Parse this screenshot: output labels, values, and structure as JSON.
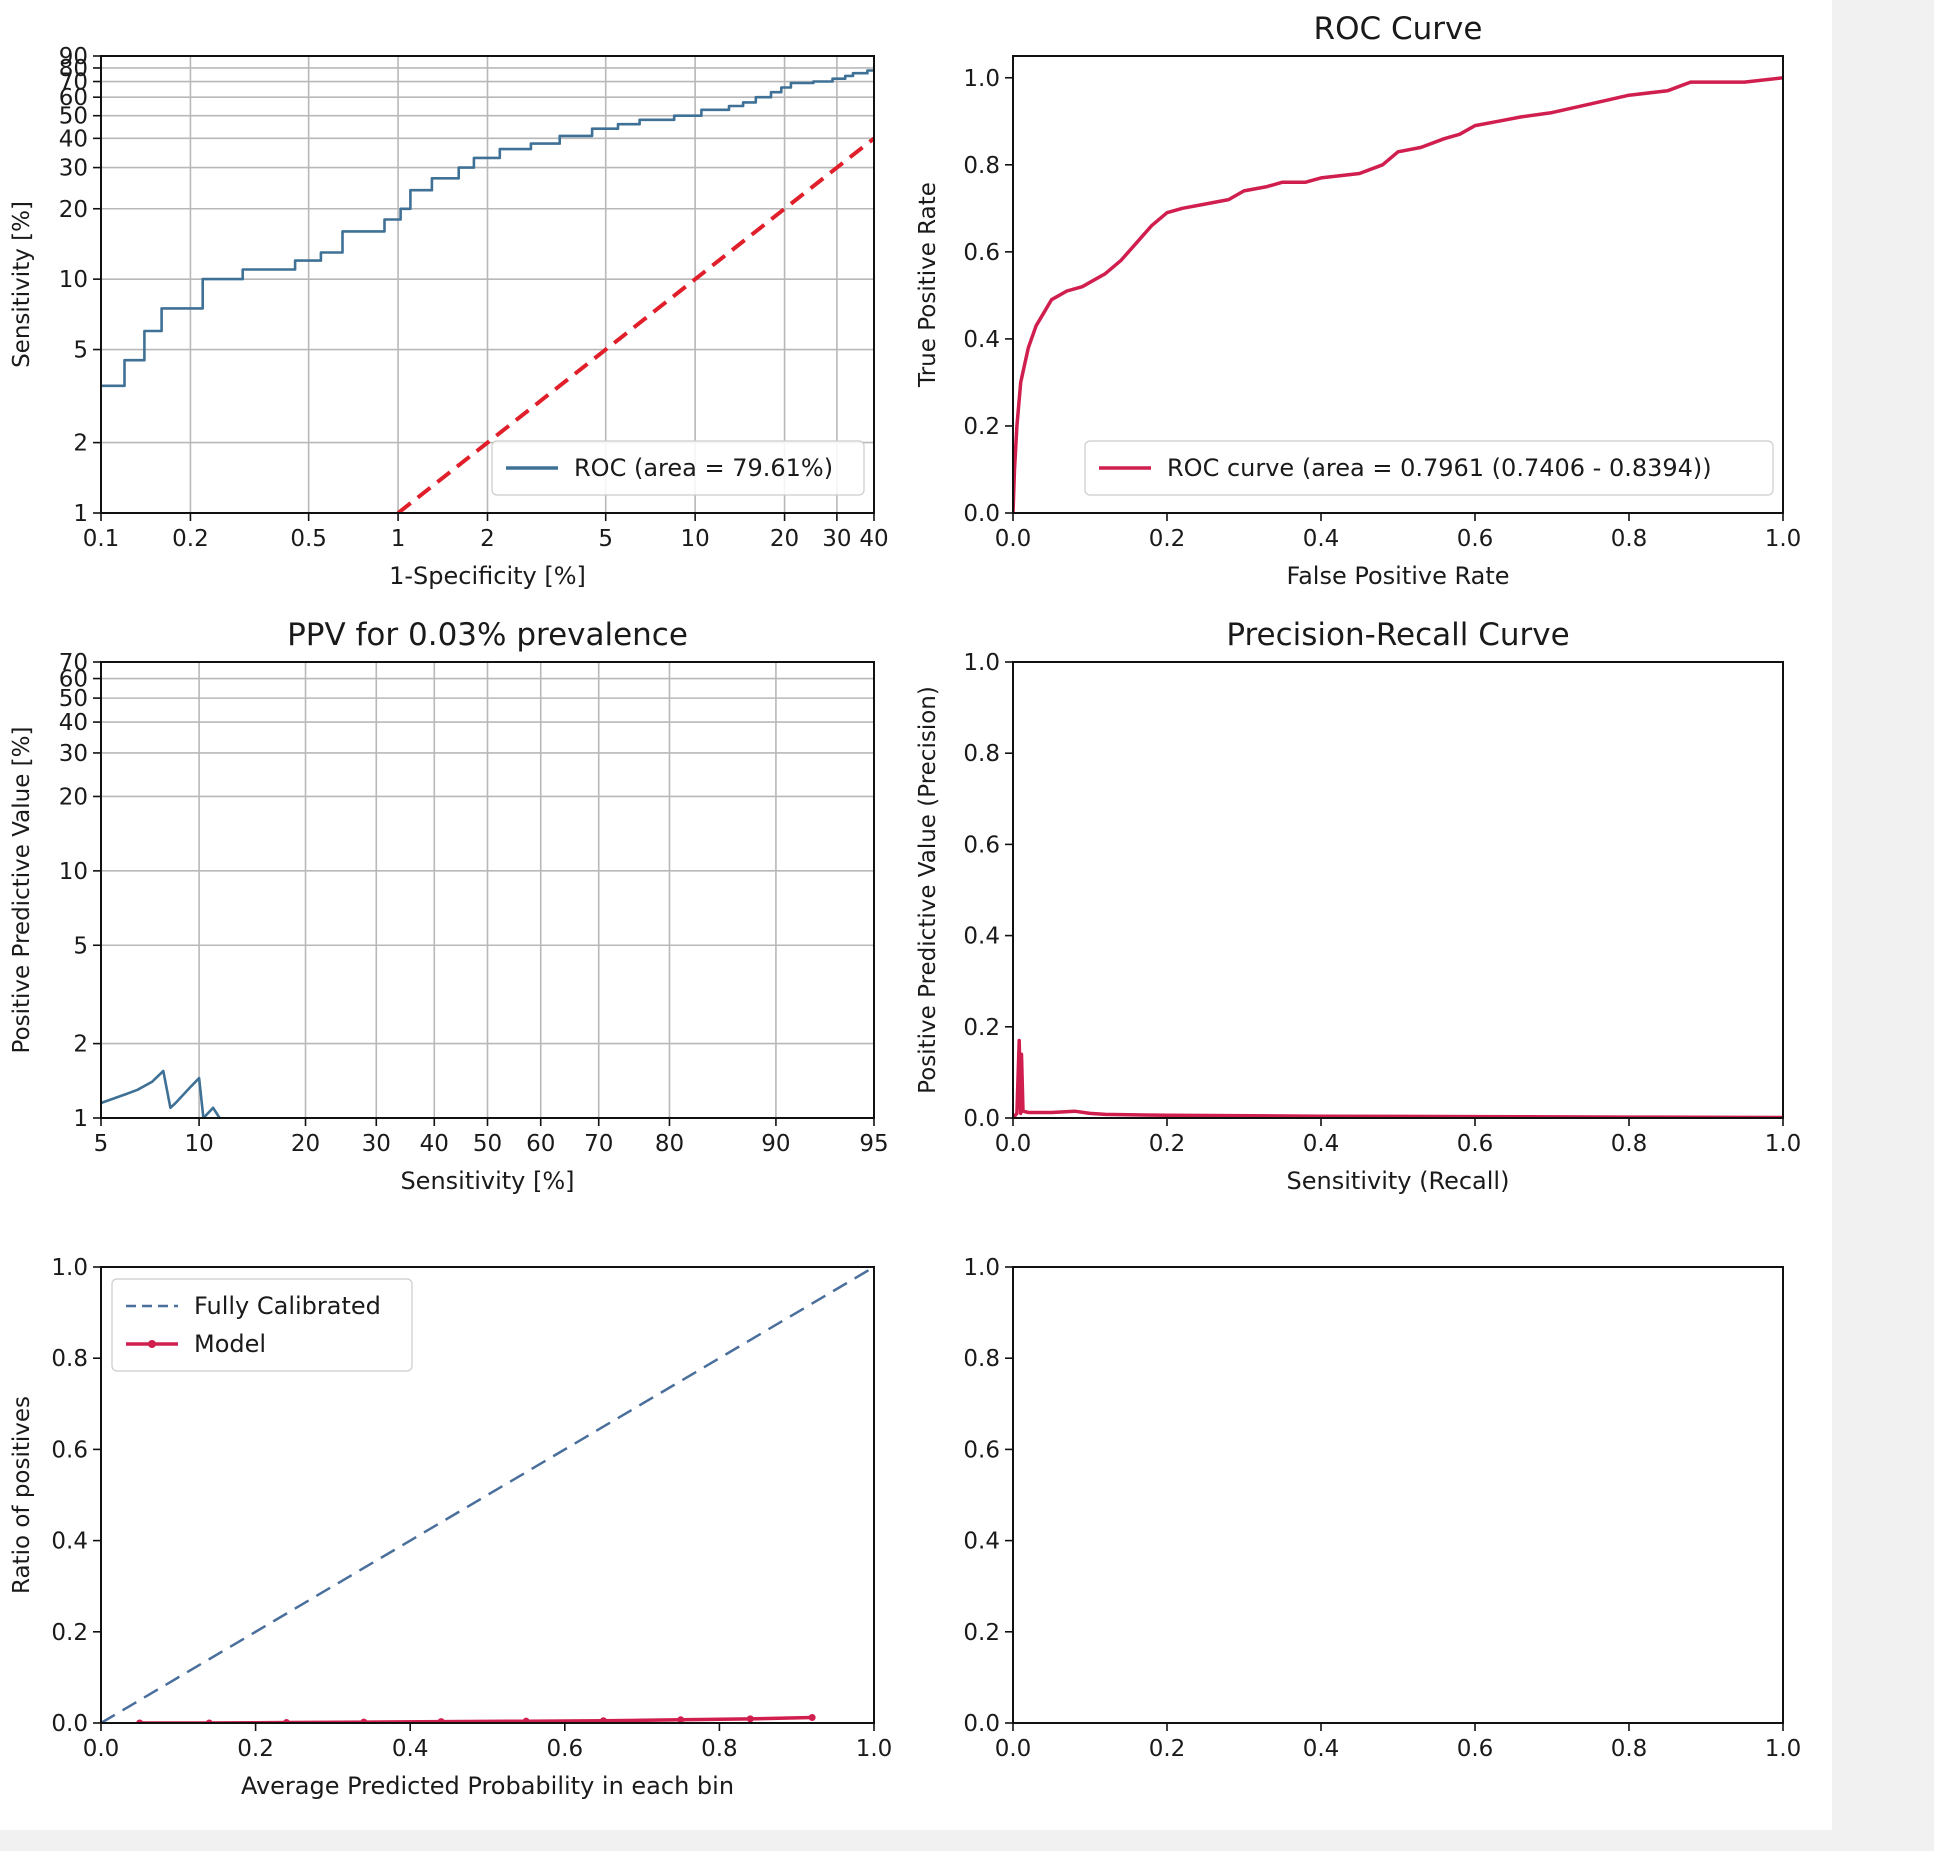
{
  "colors": {
    "steel_blue": "#3f7196",
    "crimson": "#d01e4f",
    "red_dashed": "#e01f2b",
    "grid": "#b8b8b8",
    "calib_blue": "#4a6f9c",
    "background_strip": "#f1f1f1"
  },
  "chart_data": [
    {
      "id": "sens-vs-fpr-log",
      "type": "line",
      "title": "",
      "xlabel": "1-Specificity [%]",
      "ylabel": "Sensitivity [%]",
      "xscale": "log",
      "yscale": "log",
      "xlim": [
        0.1,
        40
      ],
      "ylim": [
        1,
        90
      ],
      "xticks": [
        0.1,
        0.2,
        0.5,
        1,
        2,
        5,
        10,
        20,
        30,
        40
      ],
      "xtick_labels": [
        "0.1",
        "0.2",
        "0.5",
        "1",
        "2",
        "5",
        "10",
        "20",
        "30",
        "40"
      ],
      "yticks": [
        1,
        2,
        5,
        10,
        20,
        30,
        40,
        50,
        60,
        70,
        80,
        90
      ],
      "ytick_labels": [
        "1",
        "2",
        "5",
        "10",
        "20",
        "30",
        "40",
        "50",
        "60",
        "70",
        "80",
        "90"
      ],
      "grid": true,
      "legend": {
        "position": "lower-right",
        "entries": [
          {
            "label": "ROC (area = 79.61%)",
            "style": "line",
            "color": "#3f7196"
          }
        ]
      },
      "series": [
        {
          "name": "ROC (area = 79.61%)",
          "style": "step",
          "color": "#3f7196",
          "x": [
            0.1,
            0.12,
            0.12,
            0.14,
            0.14,
            0.16,
            0.16,
            0.22,
            0.22,
            0.3,
            0.3,
            0.45,
            0.45,
            0.55,
            0.55,
            0.65,
            0.65,
            0.9,
            0.9,
            1.02,
            1.02,
            1.1,
            1.1,
            1.3,
            1.3,
            1.6,
            1.6,
            1.8,
            1.8,
            2.2,
            2.2,
            2.8,
            2.8,
            3.5,
            3.5,
            4.5,
            4.5,
            5.5,
            5.5,
            6.5,
            6.5,
            8.5,
            8.5,
            10.5,
            10.5,
            13,
            13,
            14.5,
            14.5,
            16,
            16,
            18,
            18,
            19.5,
            19.5,
            21,
            21,
            25,
            25,
            29,
            29,
            32,
            32,
            34,
            34,
            38,
            38,
            40
          ],
          "y": [
            3.5,
            3.5,
            4.5,
            4.5,
            6,
            6,
            7.5,
            7.5,
            10,
            10,
            11,
            11,
            12,
            12,
            13,
            13,
            16,
            16,
            18,
            18,
            20,
            20,
            24,
            24,
            27,
            27,
            30,
            30,
            33,
            33,
            36,
            36,
            38,
            38,
            41,
            41,
            44,
            44,
            46,
            46,
            48,
            48,
            50,
            50,
            53,
            53,
            55,
            55,
            57,
            57,
            60,
            60,
            63,
            63,
            66,
            66,
            69,
            69,
            70,
            70,
            72,
            72,
            74,
            74,
            76,
            76,
            78,
            78
          ]
        },
        {
          "name": "",
          "style": "dashed",
          "color": "#e01f2b",
          "x": [
            1,
            40
          ],
          "y": [
            1,
            40
          ]
        }
      ]
    },
    {
      "id": "roc-curve",
      "type": "line",
      "title": "ROC Curve",
      "xlabel": "False Positive Rate",
      "ylabel": "True Positive Rate",
      "xlim": [
        0,
        1
      ],
      "ylim": [
        0,
        1.05
      ],
      "xticks": [
        0,
        0.2,
        0.4,
        0.6,
        0.8,
        1.0
      ],
      "xtick_labels": [
        "0.0",
        "0.2",
        "0.4",
        "0.6",
        "0.8",
        "1.0"
      ],
      "yticks": [
        0,
        0.2,
        0.4,
        0.6,
        0.8,
        1.0
      ],
      "ytick_labels": [
        "0.0",
        "0.2",
        "0.4",
        "0.6",
        "0.8",
        "1.0"
      ],
      "grid": false,
      "legend": {
        "position": "lower-right",
        "entries": [
          {
            "label": "ROC curve (area = 0.7961 (0.7406 - 0.8394))",
            "style": "line",
            "color": "#d01e4f"
          }
        ]
      },
      "series": [
        {
          "name": "ROC curve (area = 0.7961 (0.7406 - 0.8394))",
          "style": "line",
          "color": "#d01e4f",
          "x": [
            0,
            0.002,
            0.005,
            0.01,
            0.015,
            0.02,
            0.03,
            0.04,
            0.05,
            0.07,
            0.09,
            0.1,
            0.12,
            0.14,
            0.16,
            0.18,
            0.2,
            0.22,
            0.25,
            0.28,
            0.3,
            0.33,
            0.35,
            0.38,
            0.4,
            0.45,
            0.48,
            0.5,
            0.53,
            0.56,
            0.58,
            0.6,
            0.63,
            0.66,
            0.7,
            0.75,
            0.8,
            0.85,
            0.88,
            0.95,
            1.0
          ],
          "y": [
            0,
            0.1,
            0.2,
            0.3,
            0.34,
            0.38,
            0.43,
            0.46,
            0.49,
            0.51,
            0.52,
            0.53,
            0.55,
            0.58,
            0.62,
            0.66,
            0.69,
            0.7,
            0.71,
            0.72,
            0.74,
            0.75,
            0.76,
            0.76,
            0.77,
            0.78,
            0.8,
            0.83,
            0.84,
            0.86,
            0.87,
            0.89,
            0.9,
            0.91,
            0.92,
            0.94,
            0.96,
            0.97,
            0.99,
            0.99,
            1.0
          ]
        }
      ]
    },
    {
      "id": "ppv-prevalence",
      "type": "line",
      "title": "PPV for 0.03% prevalence",
      "xlabel": "Sensitivity [%]",
      "ylabel": "Positive Predictive Value [%]",
      "xscale": "logit",
      "yscale": "log",
      "xlim": [
        5,
        95
      ],
      "ylim": [
        1,
        70
      ],
      "xticks": [
        5,
        10,
        20,
        30,
        40,
        50,
        60,
        70,
        80,
        90,
        95
      ],
      "xtick_labels": [
        "5",
        "10",
        "20",
        "30",
        "40",
        "50",
        "60",
        "70",
        "80",
        "90",
        "95"
      ],
      "yticks": [
        1,
        2,
        5,
        10,
        20,
        30,
        40,
        50,
        60,
        70
      ],
      "ytick_labels": [
        "1",
        "2",
        "5",
        "10",
        "20",
        "30",
        "40",
        "50",
        "60",
        "70"
      ],
      "grid": true,
      "series": [
        {
          "name": "",
          "style": "line",
          "color": "#3f7196",
          "x": [
            5,
            6,
            6.5,
            7.2,
            7.8,
            8.2,
            8.5,
            9.5,
            10.0,
            10.3,
            11.0,
            11.5
          ],
          "y": [
            1.15,
            1.25,
            1.3,
            1.4,
            1.55,
            1.1,
            1.15,
            1.35,
            1.45,
            1.0,
            1.1,
            1.0
          ]
        }
      ]
    },
    {
      "id": "precision-recall",
      "type": "line",
      "title": "Precision-Recall Curve",
      "xlabel": "Sensitivity (Recall)",
      "ylabel": "Positive Predictive Value (Precision)",
      "xlim": [
        0,
        1
      ],
      "ylim": [
        0,
        1
      ],
      "xticks": [
        0,
        0.2,
        0.4,
        0.6,
        0.8,
        1.0
      ],
      "xtick_labels": [
        "0.0",
        "0.2",
        "0.4",
        "0.6",
        "0.8",
        "1.0"
      ],
      "yticks": [
        0,
        0.2,
        0.4,
        0.6,
        0.8,
        1.0
      ],
      "ytick_labels": [
        "0.0",
        "0.2",
        "0.4",
        "0.6",
        "0.8",
        "1.0"
      ],
      "grid": false,
      "series": [
        {
          "name": "",
          "style": "line",
          "color": "#d01e4f",
          "x": [
            0.0,
            0.005,
            0.008,
            0.01,
            0.011,
            0.013,
            0.02,
            0.05,
            0.08,
            0.1,
            0.12,
            0.2,
            0.4,
            0.6,
            0.8,
            1.0
          ],
          "y": [
            0.0,
            0.01,
            0.17,
            0.01,
            0.14,
            0.015,
            0.012,
            0.012,
            0.015,
            0.01,
            0.008,
            0.006,
            0.004,
            0.003,
            0.002,
            0.001
          ]
        }
      ]
    },
    {
      "id": "calibration",
      "type": "line",
      "title": "",
      "xlabel": "Average Predicted Probability in each bin",
      "ylabel": "Ratio of positives",
      "xlim": [
        0,
        1
      ],
      "ylim": [
        0,
        1
      ],
      "xticks": [
        0,
        0.2,
        0.4,
        0.6,
        0.8,
        1.0
      ],
      "xtick_labels": [
        "0.0",
        "0.2",
        "0.4",
        "0.6",
        "0.8",
        "1.0"
      ],
      "yticks": [
        0,
        0.2,
        0.4,
        0.6,
        0.8,
        1.0
      ],
      "ytick_labels": [
        "0.0",
        "0.2",
        "0.4",
        "0.6",
        "0.8",
        "1.0"
      ],
      "grid": false,
      "legend": {
        "position": "upper-left",
        "entries": [
          {
            "label": "Fully Calibrated",
            "style": "dashed",
            "color": "#4a6f9c"
          },
          {
            "label": "Model",
            "style": "line-marker",
            "color": "#d01e4f"
          }
        ]
      },
      "series": [
        {
          "name": "Fully Calibrated",
          "style": "dashed",
          "color": "#4a6f9c",
          "x": [
            0,
            1
          ],
          "y": [
            0,
            1
          ]
        },
        {
          "name": "Model",
          "style": "line-marker",
          "color": "#d01e4f",
          "x": [
            0.05,
            0.14,
            0.24,
            0.34,
            0.44,
            0.55,
            0.65,
            0.75,
            0.84,
            0.92
          ],
          "y": [
            0.0,
            0.0,
            0.001,
            0.002,
            0.003,
            0.004,
            0.005,
            0.007,
            0.009,
            0.012
          ]
        }
      ]
    },
    {
      "id": "empty-panel",
      "type": "line",
      "title": "",
      "xlabel": "",
      "ylabel": "",
      "xlim": [
        0,
        1
      ],
      "ylim": [
        0,
        1
      ],
      "xticks": [
        0,
        0.2,
        0.4,
        0.6,
        0.8,
        1.0
      ],
      "xtick_labels": [
        "0.0",
        "0.2",
        "0.4",
        "0.6",
        "0.8",
        "1.0"
      ],
      "yticks": [
        0,
        0.2,
        0.4,
        0.6,
        0.8,
        1.0
      ],
      "ytick_labels": [
        "0.0",
        "0.2",
        "0.4",
        "0.6",
        "0.8",
        "1.0"
      ],
      "grid": false,
      "series": []
    }
  ]
}
